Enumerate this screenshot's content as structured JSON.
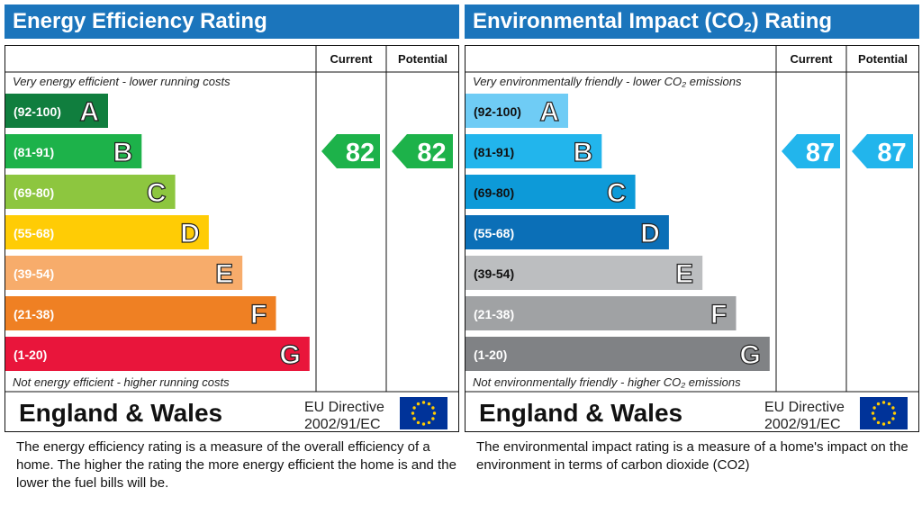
{
  "energy": {
    "title": "Energy Efficiency Rating",
    "description": "The energy efficiency rating is a measure of the overall efficiency of a home.  The higher the rating the more energy efficient the home is and the lower the fuel bills will be.",
    "chart_data": {
      "type": "bar",
      "columns": [
        "Current",
        "Potential"
      ],
      "top_text": "Very energy efficient - lower running costs",
      "bottom_text": "Not energy efficient - higher running costs",
      "bands": [
        {
          "range": "(92-100)",
          "letter": "A",
          "color": "#107e3e"
        },
        {
          "range": "(81-91)",
          "letter": "B",
          "color": "#1db24a"
        },
        {
          "range": "(69-80)",
          "letter": "C",
          "color": "#8dc63f"
        },
        {
          "range": "(55-68)",
          "letter": "D",
          "color": "#ffcc05"
        },
        {
          "range": "(39-54)",
          "letter": "E",
          "color": "#f7ac6b"
        },
        {
          "range": "(21-38)",
          "letter": "F",
          "color": "#ef8023"
        },
        {
          "range": "(1-20)",
          "letter": "G",
          "color": "#e9153b"
        }
      ],
      "current": {
        "value": 82,
        "band": "B",
        "color": "#1db24a"
      },
      "potential": {
        "value": 82,
        "band": "B",
        "color": "#1db24a"
      },
      "footer": {
        "region": "England & Wales",
        "directive_line1": "EU Directive",
        "directive_line2": "2002/91/EC"
      },
      "title_color": "#1b75bc",
      "range_text_color": "#ffffff"
    }
  },
  "environment": {
    "title_pre": "Environmental Impact (CO",
    "title_sub": "2",
    "title_post": ") Rating",
    "description": "The environmental impact rating is a measure of a home's impact on the environment in terms of carbon dioxide (CO2)",
    "chart_data": {
      "type": "bar",
      "columns": [
        "Current",
        "Potential"
      ],
      "top_text": "Very environmentally friendly - lower CO₂ emissions",
      "bottom_text": "Not environmentally friendly - higher CO₂ emissions",
      "bands": [
        {
          "range": "(92-100)",
          "letter": "A",
          "color": "#6fccf5"
        },
        {
          "range": "(81-91)",
          "letter": "B",
          "color": "#22b5ec"
        },
        {
          "range": "(69-80)",
          "letter": "C",
          "color": "#0d9ad8"
        },
        {
          "range": "(55-68)",
          "letter": "D",
          "color": "#0b6fb7"
        },
        {
          "range": "(39-54)",
          "letter": "E",
          "color": "#bcbec0"
        },
        {
          "range": "(21-38)",
          "letter": "F",
          "color": "#a0a2a4"
        },
        {
          "range": "(1-20)",
          "letter": "G",
          "color": "#808285"
        }
      ],
      "current": {
        "value": 87,
        "band": "B",
        "color": "#22b5ec"
      },
      "potential": {
        "value": 87,
        "band": "B",
        "color": "#22b5ec"
      },
      "footer": {
        "region": "England & Wales",
        "directive_line1": "EU Directive",
        "directive_line2": "2002/91/EC"
      },
      "title_color": "#1b75bc",
      "range_text_color_dark": "#111111",
      "range_text_color_light": "#ffffff"
    }
  }
}
